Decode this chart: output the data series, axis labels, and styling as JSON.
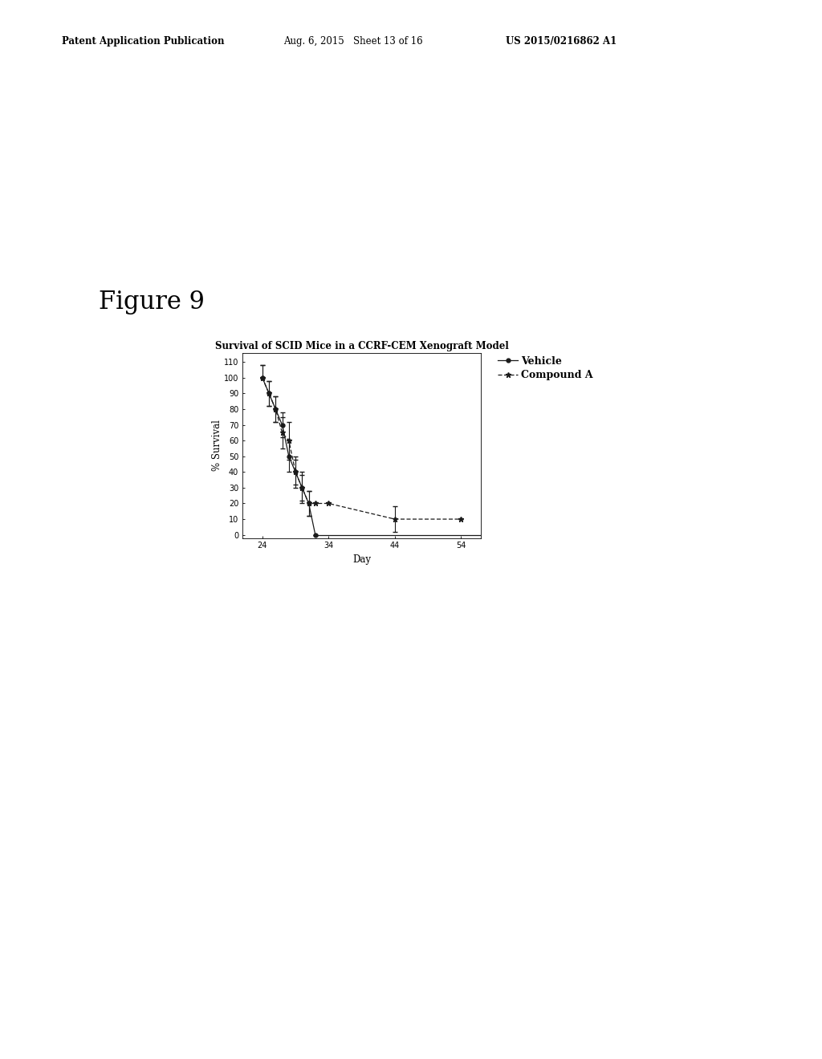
{
  "title": "Survival of SCID Mice in a CCRF-CEM Xenograft Model",
  "xlabel": "Day",
  "ylabel": "% Survival",
  "figure_label": "Figure 9",
  "header_left": "Patent Application Publication",
  "header_mid": "Aug. 6, 2015   Sheet 13 of 16",
  "header_right": "US 2015/0216862 A1",
  "xlim": [
    21,
    57
  ],
  "ylim": [
    -2,
    116
  ],
  "xticks": [
    24,
    34,
    44,
    54
  ],
  "yticks": [
    0,
    10,
    20,
    30,
    40,
    50,
    60,
    70,
    80,
    90,
    100,
    110
  ],
  "vehicle_x": [
    24,
    25,
    26,
    27,
    28,
    29,
    30,
    31,
    32
  ],
  "vehicle_y": [
    100,
    90,
    80,
    70,
    50,
    40,
    30,
    20,
    0
  ],
  "vehicle_yerr_low": [
    0,
    8,
    8,
    8,
    10,
    8,
    8,
    8,
    0
  ],
  "vehicle_yerr_high": [
    8,
    8,
    8,
    8,
    10,
    8,
    8,
    8,
    0
  ],
  "compound_x": [
    24,
    25,
    26,
    27,
    28,
    29,
    30,
    31,
    32,
    34,
    44,
    54
  ],
  "compound_y": [
    100,
    90,
    80,
    65,
    60,
    40,
    30,
    20,
    20,
    20,
    10,
    10
  ],
  "compound_yerr_low": [
    0,
    8,
    8,
    10,
    12,
    10,
    10,
    8,
    0,
    0,
    8,
    0
  ],
  "compound_yerr_high": [
    8,
    8,
    8,
    10,
    12,
    10,
    10,
    8,
    0,
    0,
    8,
    0
  ],
  "line_color": "#1a1a1a",
  "bg_color": "#ffffff",
  "legend_vehicle": "Vehicle",
  "legend_compound": "Compound A",
  "header_fontsize": 8.5,
  "figure_label_fontsize": 22,
  "title_fontsize": 8.5,
  "axis_label_fontsize": 8.5,
  "tick_fontsize": 7,
  "legend_fontsize": 9
}
